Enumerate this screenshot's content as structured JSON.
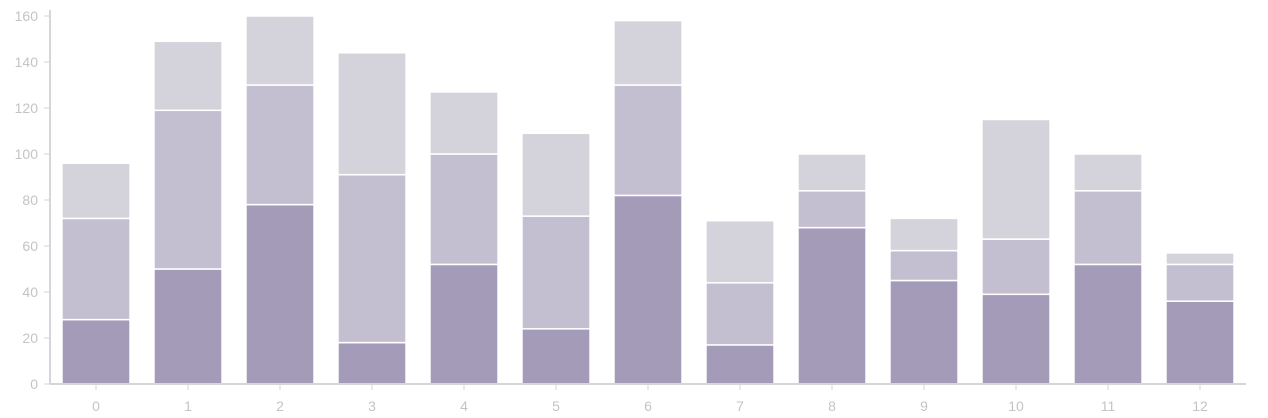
{
  "chart_data": {
    "type": "bar",
    "stacked": true,
    "categories": [
      "0",
      "1",
      "2",
      "3",
      "4",
      "5",
      "6",
      "7",
      "8",
      "9",
      "10",
      "11",
      "12"
    ],
    "series": [
      {
        "values": [
          28,
          50,
          78,
          18,
          52,
          24,
          82,
          17,
          68,
          45,
          39,
          52,
          36
        ]
      },
      {
        "values": [
          44,
          69,
          52,
          73,
          48,
          49,
          48,
          27,
          16,
          13,
          24,
          32,
          16
        ]
      },
      {
        "values": [
          24,
          30,
          30,
          53,
          27,
          36,
          28,
          27,
          16,
          14,
          52,
          16,
          5
        ]
      }
    ],
    "ylim": [
      0,
      160
    ],
    "yticks": [
      0,
      20,
      40,
      60,
      80,
      100,
      120,
      140,
      160
    ],
    "colors": [
      "#a49bb9",
      "#c3bfd0",
      "#d4d3db"
    ],
    "grid": false,
    "xlabel": "",
    "ylabel": ""
  }
}
